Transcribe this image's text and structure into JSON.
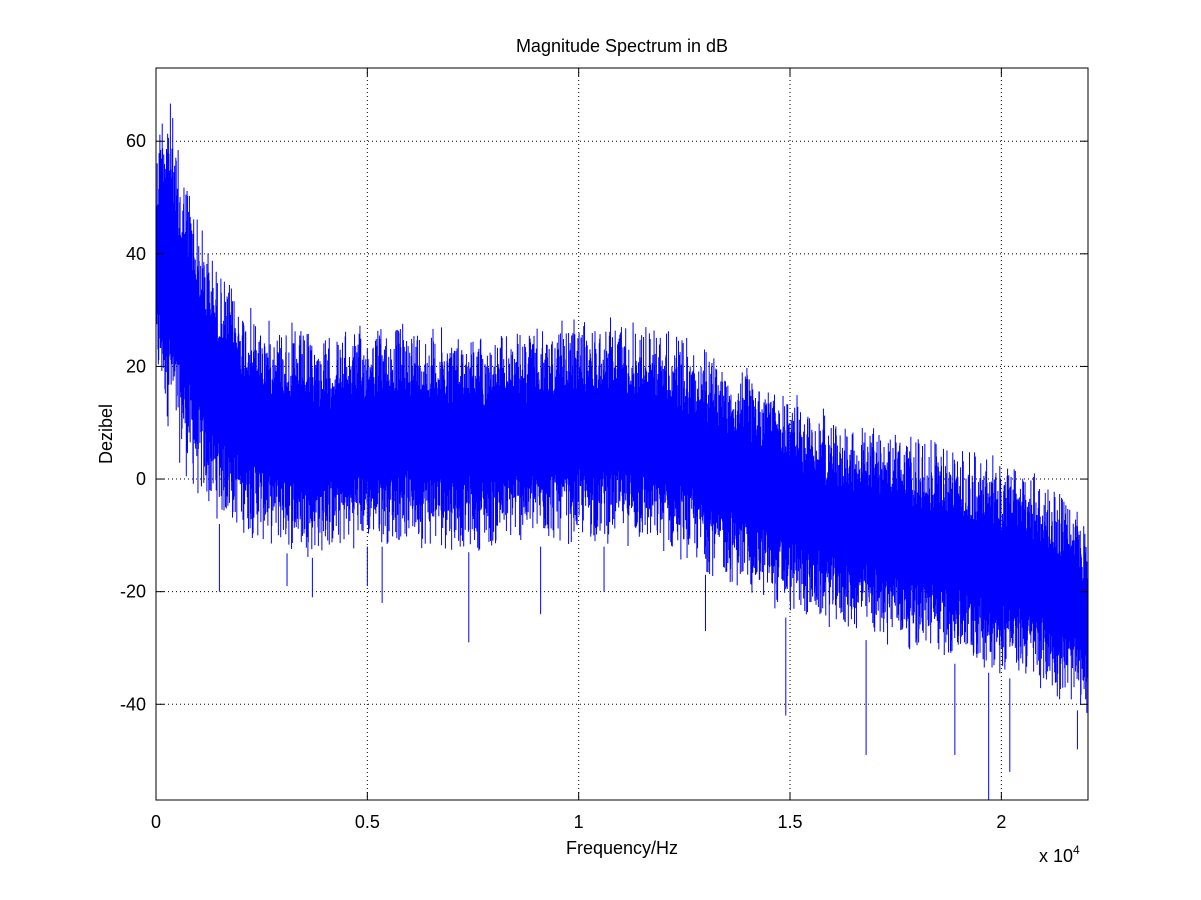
{
  "chart_data": {
    "type": "line",
    "title": "Magnitude Spectrum in dB",
    "xlabel": "Frequency/Hz",
    "ylabel": "Dezibel",
    "x_multiplier_label": {
      "base": "x 10",
      "exponent": "4"
    },
    "xlim": [
      0,
      22050
    ],
    "ylim": [
      -57,
      73
    ],
    "xticks": [
      0,
      5000,
      10000,
      15000,
      20000
    ],
    "xtick_labels": [
      "0",
      "0.5",
      "1",
      "1.5",
      "2"
    ],
    "yticks": [
      -40,
      -20,
      0,
      20,
      40,
      60
    ],
    "ytick_labels": [
      "-40",
      "-20",
      "0",
      "20",
      "40",
      "60"
    ],
    "grid": true,
    "series": [
      {
        "color": "#0000ff",
        "upper_envelope": {
          "x": [
            0,
            150,
            300,
            500,
            800,
            1000,
            1500,
            2000,
            2500,
            3000,
            3500,
            4000,
            4500,
            5000,
            5500,
            6000,
            6500,
            7000,
            7500,
            8000,
            8500,
            9000,
            9500,
            10000,
            10500,
            11000,
            11500,
            12000,
            12500,
            13000,
            13500,
            14000,
            14500,
            15000,
            15500,
            16000,
            16500,
            17000,
            17500,
            18000,
            18500,
            19000,
            19500,
            20000,
            20500,
            21000,
            21500,
            22050
          ],
          "y": [
            60,
            70,
            71,
            60,
            55,
            48,
            38,
            33,
            29,
            29,
            27,
            26,
            27,
            28,
            28,
            29,
            28,
            27,
            27,
            26,
            27,
            27,
            28,
            29,
            29,
            30,
            29,
            28,
            26,
            24,
            22,
            20,
            18,
            16,
            14,
            12,
            11,
            10,
            9,
            8,
            7,
            6,
            5,
            4,
            3,
            1,
            -2,
            -8
          ]
        },
        "lower_envelope": {
          "x": [
            0,
            150,
            300,
            500,
            800,
            1000,
            1500,
            2000,
            2500,
            3000,
            3500,
            4000,
            4500,
            5000,
            5500,
            6000,
            6500,
            7000,
            7500,
            8000,
            8500,
            9000,
            9500,
            10000,
            10500,
            11000,
            11500,
            12000,
            12500,
            13000,
            13500,
            14000,
            14500,
            15000,
            15500,
            16000,
            16500,
            17000,
            17500,
            18000,
            18500,
            19000,
            19500,
            20000,
            20500,
            21000,
            21500,
            22050
          ],
          "y": [
            15,
            12,
            8,
            3,
            -2,
            -5,
            -8,
            -10,
            -12,
            -13,
            -14,
            -14,
            -13,
            -12,
            -12,
            -12,
            -13,
            -13,
            -13,
            -13,
            -12,
            -12,
            -12,
            -12,
            -12,
            -12,
            -13,
            -14,
            -15,
            -17,
            -19,
            -21,
            -23,
            -25,
            -26,
            -27,
            -28,
            -29,
            -30,
            -31,
            -32,
            -33,
            -34,
            -35,
            -36,
            -38,
            -40,
            -42
          ]
        },
        "min_spikes": [
          {
            "x": 1500,
            "y": -20
          },
          {
            "x": 3100,
            "y": -19
          },
          {
            "x": 3700,
            "y": -21
          },
          {
            "x": 5000,
            "y": -19
          },
          {
            "x": 5350,
            "y": -22
          },
          {
            "x": 7400,
            "y": -29
          },
          {
            "x": 9100,
            "y": -24
          },
          {
            "x": 10600,
            "y": -20
          },
          {
            "x": 13000,
            "y": -27
          },
          {
            "x": 14900,
            "y": -42
          },
          {
            "x": 16800,
            "y": -49
          },
          {
            "x": 18900,
            "y": -49
          },
          {
            "x": 19700,
            "y": -57
          },
          {
            "x": 20200,
            "y": -52
          },
          {
            "x": 21800,
            "y": -48
          }
        ]
      }
    ]
  }
}
